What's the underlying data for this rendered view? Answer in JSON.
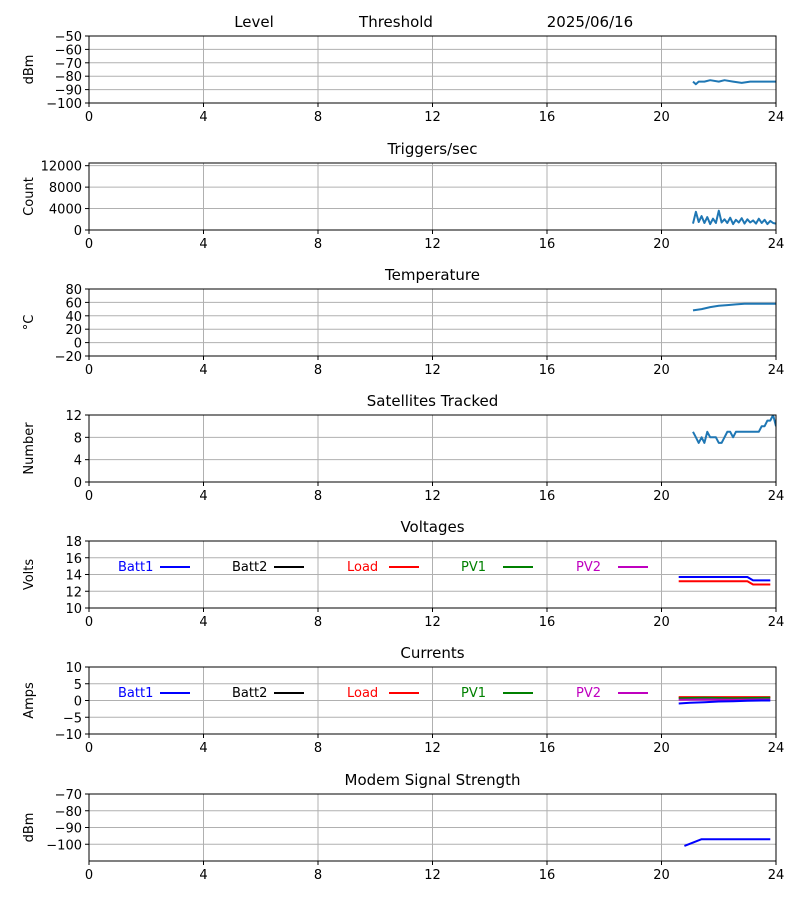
{
  "colors": {
    "default_line": "#1f77b4",
    "grid": "#b0b0b0",
    "batt1": "#0000ff",
    "batt2": "#000000",
    "load": "#ff0000",
    "pv1": "#008000",
    "pv2": "#bf00bf"
  },
  "header": {
    "level_label": "Level",
    "threshold_label": "Threshold",
    "date": "2025/06/16"
  },
  "chart_data": [
    {
      "type": "line",
      "title": "",
      "ylabel": "dBm",
      "xlim": [
        0,
        24
      ],
      "xticks": [
        0,
        4,
        8,
        12,
        16,
        20,
        24
      ],
      "ylim": [
        -100,
        -50
      ],
      "yticks": [
        -100,
        -90,
        -80,
        -70,
        -60,
        -50
      ],
      "grid": true,
      "series": [
        {
          "color": "default_line",
          "x": [
            21.1,
            21.2,
            21.3,
            21.5,
            21.7,
            22.0,
            22.2,
            22.5,
            22.8,
            23.1,
            23.5,
            24.0
          ],
          "y": [
            -84,
            -86,
            -84,
            -84,
            -83,
            -84,
            -83,
            -84,
            -85,
            -84,
            -84,
            -84
          ]
        }
      ]
    },
    {
      "type": "line",
      "title": "Triggers/sec",
      "ylabel": "Count",
      "xlim": [
        0,
        24
      ],
      "xticks": [
        0,
        4,
        8,
        12,
        16,
        20,
        24
      ],
      "ylim": [
        0,
        12500
      ],
      "yticks": [
        0,
        4000,
        8000,
        12000
      ],
      "grid": true,
      "series": [
        {
          "color": "default_line",
          "x": [
            21.1,
            21.2,
            21.3,
            21.4,
            21.5,
            21.6,
            21.7,
            21.8,
            21.9,
            22.0,
            22.1,
            22.2,
            22.3,
            22.4,
            22.5,
            22.6,
            22.7,
            22.8,
            22.9,
            23.0,
            23.1,
            23.2,
            23.3,
            23.4,
            23.5,
            23.6,
            23.7,
            23.8,
            23.9,
            24.0
          ],
          "y": [
            1200,
            3400,
            1500,
            2600,
            1300,
            2400,
            1100,
            2100,
            1300,
            3600,
            1400,
            2000,
            1300,
            2300,
            1100,
            1900,
            1400,
            2200,
            1200,
            2000,
            1400,
            1800,
            1200,
            2100,
            1300,
            1900,
            1100,
            1700,
            1300,
            1200
          ]
        }
      ]
    },
    {
      "type": "line",
      "title": "Temperature",
      "ylabel": "°C",
      "xlim": [
        0,
        24
      ],
      "xticks": [
        0,
        4,
        8,
        12,
        16,
        20,
        24
      ],
      "ylim": [
        -20,
        80
      ],
      "yticks": [
        -20,
        0,
        20,
        40,
        60,
        80
      ],
      "grid": true,
      "series": [
        {
          "color": "default_line",
          "x": [
            21.1,
            21.4,
            21.7,
            22.0,
            22.3,
            22.6,
            22.9,
            23.2,
            23.6,
            24.0
          ],
          "y": [
            48,
            50,
            53,
            55,
            56,
            57,
            58,
            58,
            58,
            58
          ]
        }
      ]
    },
    {
      "type": "line",
      "title": "Satellites Tracked",
      "ylabel": "Number",
      "xlim": [
        0,
        24
      ],
      "xticks": [
        0,
        4,
        8,
        12,
        16,
        20,
        24
      ],
      "ylim": [
        0,
        12
      ],
      "yticks": [
        0,
        4,
        8,
        12
      ],
      "grid": true,
      "series": [
        {
          "color": "default_line",
          "x": [
            21.1,
            21.2,
            21.3,
            21.4,
            21.5,
            21.6,
            21.7,
            21.8,
            21.9,
            22.0,
            22.1,
            22.2,
            22.3,
            22.4,
            22.5,
            22.6,
            22.7,
            22.8,
            22.9,
            23.0,
            23.1,
            23.2,
            23.3,
            23.4,
            23.5,
            23.6,
            23.7,
            23.8,
            23.9,
            24.0
          ],
          "y": [
            9,
            8,
            7,
            8,
            7,
            9,
            8,
            8,
            8,
            7,
            7,
            8,
            9,
            9,
            8,
            9,
            9,
            9,
            9,
            9,
            9,
            9,
            9,
            9,
            10,
            10,
            11,
            11,
            12,
            10
          ]
        }
      ]
    },
    {
      "type": "line",
      "title": "Voltages",
      "ylabel": "Volts",
      "xlim": [
        0,
        24
      ],
      "xticks": [
        0,
        4,
        8,
        12,
        16,
        20,
        24
      ],
      "ylim": [
        10,
        18
      ],
      "yticks": [
        10,
        12,
        14,
        16,
        18
      ],
      "grid": true,
      "legend": [
        {
          "name": "Batt1",
          "color": "batt1"
        },
        {
          "name": "Batt2",
          "color": "batt2"
        },
        {
          "name": "Load",
          "color": "load"
        },
        {
          "name": "PV1",
          "color": "pv1"
        },
        {
          "name": "PV2",
          "color": "pv2"
        }
      ],
      "series": [
        {
          "name": "Batt1",
          "color": "batt1",
          "x": [
            20.6,
            21.0,
            22.0,
            23.0,
            23.2,
            23.6,
            23.8
          ],
          "y": [
            13.7,
            13.7,
            13.7,
            13.7,
            13.3,
            13.3,
            13.3
          ]
        },
        {
          "name": "Load",
          "color": "load",
          "x": [
            20.6,
            21.0,
            22.0,
            23.0,
            23.2,
            23.6,
            23.8
          ],
          "y": [
            13.2,
            13.2,
            13.2,
            13.2,
            12.8,
            12.8,
            12.8
          ]
        }
      ]
    },
    {
      "type": "line",
      "title": "Currents",
      "ylabel": "Amps",
      "xlim": [
        0,
        24
      ],
      "xticks": [
        0,
        4,
        8,
        12,
        16,
        20,
        24
      ],
      "ylim": [
        -10,
        10
      ],
      "yticks": [
        -10,
        -5,
        0,
        5,
        10
      ],
      "grid": true,
      "legend": [
        {
          "name": "Batt1",
          "color": "batt1"
        },
        {
          "name": "Batt2",
          "color": "batt2"
        },
        {
          "name": "Load",
          "color": "load"
        },
        {
          "name": "PV1",
          "color": "pv1"
        },
        {
          "name": "PV2",
          "color": "pv2"
        }
      ],
      "series": [
        {
          "name": "Load",
          "color": "load",
          "x": [
            20.6,
            21.5,
            22.5,
            23.8
          ],
          "y": [
            1.0,
            1.0,
            1.0,
            1.0
          ]
        },
        {
          "name": "PV1",
          "color": "pv1",
          "x": [
            20.6,
            21.5,
            22.5,
            23.8
          ],
          "y": [
            0.7,
            0.8,
            0.7,
            0.8
          ]
        },
        {
          "name": "PV2",
          "color": "pv2",
          "x": [
            20.6,
            21.5,
            22.5,
            23.8
          ],
          "y": [
            0.2,
            0.3,
            0.2,
            0.3
          ]
        },
        {
          "name": "Batt1",
          "color": "batt1",
          "x": [
            20.6,
            21.0,
            21.5,
            22.0,
            22.5,
            23.0,
            23.5,
            23.8
          ],
          "y": [
            -0.9,
            -0.7,
            -0.5,
            -0.3,
            -0.2,
            -0.1,
            0.0,
            0.0
          ]
        }
      ]
    },
    {
      "type": "line",
      "title": "Modem Signal Strength",
      "ylabel": "dBm",
      "xlim": [
        0,
        24
      ],
      "xticks": [
        0,
        4,
        8,
        12,
        16,
        20,
        24
      ],
      "ylim": [
        -110,
        -70
      ],
      "yticks": [
        -100,
        -90,
        -80,
        -70
      ],
      "grid": true,
      "series": [
        {
          "color": "batt1",
          "x": [
            20.8,
            21.4,
            22.0,
            23.0,
            23.8
          ],
          "y": [
            -101,
            -97,
            -97,
            -97,
            -97
          ]
        }
      ]
    }
  ]
}
